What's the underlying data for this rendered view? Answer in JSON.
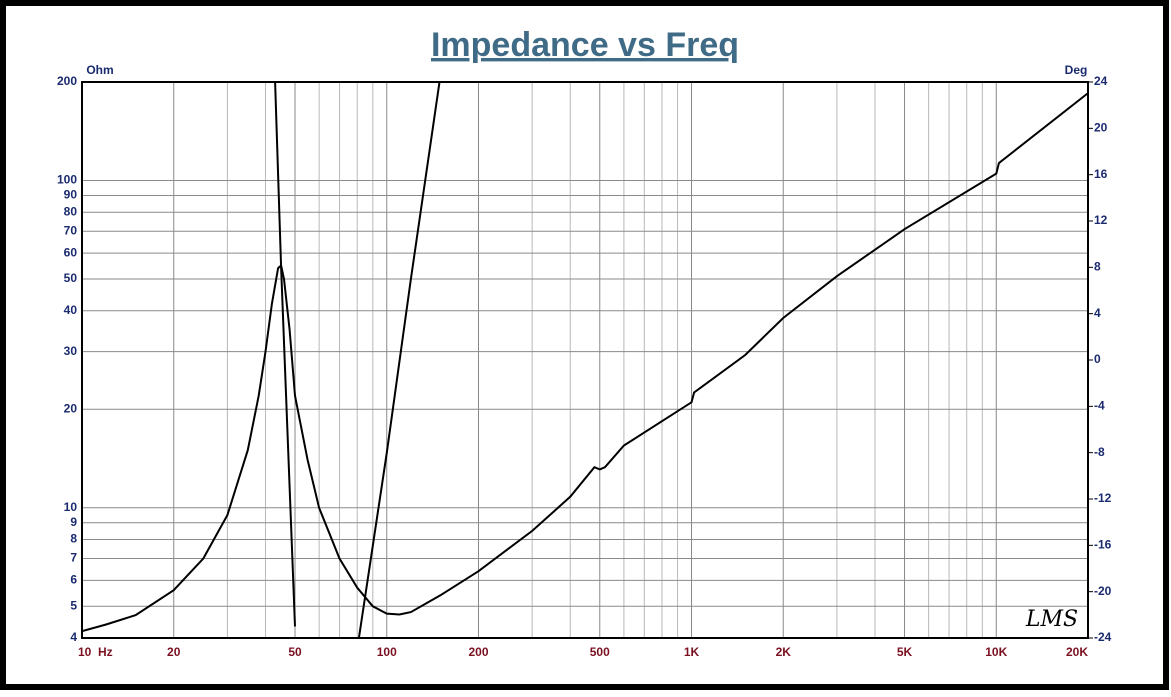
{
  "chart_data": {
    "type": "line",
    "title": "Impedance vs Freq",
    "y_label": "Ohm",
    "y2_label": "Deg",
    "annotation": "LMS",
    "log_x": true,
    "log_y": true,
    "grid": true,
    "xlim": [
      10,
      20000
    ],
    "ylim": [
      4,
      200
    ],
    "y2lim": [
      -24,
      24
    ],
    "xticks": [
      {
        "value": 10,
        "label": "10  Hz"
      },
      20,
      50,
      100,
      200,
      500,
      {
        "value": 1000,
        "label": "1K"
      },
      {
        "value": 2000,
        "label": "2K"
      },
      {
        "value": 5000,
        "label": "5K"
      },
      {
        "value": 10000,
        "label": "10K"
      },
      {
        "value": 20000,
        "label": "20K"
      }
    ],
    "xminor": [
      30,
      40,
      60,
      70,
      80,
      90,
      300,
      400,
      600,
      700,
      800,
      900,
      3000,
      4000,
      6000,
      7000,
      8000,
      9000
    ],
    "yticks": [
      200,
      100,
      90,
      80,
      70,
      60,
      50,
      40,
      30,
      20,
      10,
      9,
      8,
      7,
      6,
      5,
      4
    ],
    "y2ticks": [
      24,
      20,
      16,
      12,
      8,
      4,
      0,
      -4,
      -8,
      -12,
      -16,
      -20,
      -24
    ],
    "series": [
      {
        "color": "#000000",
        "x": [
          10,
          12,
          15,
          20,
          25,
          30,
          35,
          38,
          40,
          42,
          44,
          45,
          46,
          48,
          50,
          55,
          60,
          70,
          80,
          90,
          100,
          110,
          120,
          150,
          200,
          300,
          400,
          480,
          500,
          520,
          600,
          1000,
          1020,
          1500,
          2000,
          3000,
          5000,
          10000,
          10200,
          20000
        ],
        "values": [
          4.2,
          4.4,
          4.7,
          5.6,
          7,
          9.5,
          15,
          22,
          30,
          42,
          54,
          55,
          50,
          35,
          22,
          14,
          10,
          7,
          5.7,
          5,
          4.75,
          4.72,
          4.8,
          5.4,
          6.4,
          8.5,
          10.8,
          13.3,
          13.1,
          13.3,
          15.5,
          21,
          22.5,
          29.3,
          38,
          51,
          71,
          105,
          113,
          185
        ]
      },
      {
        "color": "#000000",
        "axis": "y2",
        "x": [
          43,
          45,
          50,
          null,
          81,
          100,
          120,
          149
        ],
        "values": [
          24,
          8,
          -23,
          null,
          -24,
          -8,
          7,
          24
        ]
      }
    ]
  }
}
